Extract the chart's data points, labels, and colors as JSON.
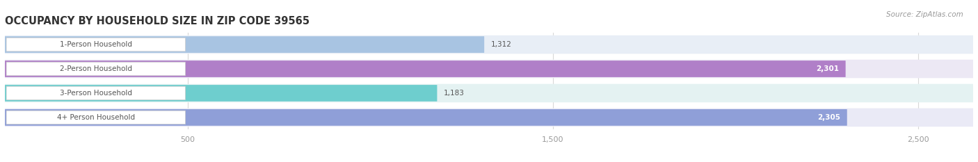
{
  "title": "OCCUPANCY BY HOUSEHOLD SIZE IN ZIP CODE 39565",
  "source": "Source: ZipAtlas.com",
  "categories": [
    "1-Person Household",
    "2-Person Household",
    "3-Person Household",
    "4+ Person Household"
  ],
  "values": [
    1312,
    2301,
    1183,
    2305
  ],
  "value_labels": [
    "1,312",
    "2,301",
    "1,183",
    "2,305"
  ],
  "bar_colors": [
    "#a8c4e2",
    "#b07fc8",
    "#6ecece",
    "#8f9fd8"
  ],
  "bar_bg_colors": [
    "#e8eef6",
    "#ece8f4",
    "#e4f2f2",
    "#eaeaf6"
  ],
  "label_pill_color": "#ffffff",
  "label_text_color": "#555555",
  "xlim_max": 2650,
  "data_max": 2500,
  "xticks": [
    500,
    1500,
    2500
  ],
  "title_fontsize": 10.5,
  "source_fontsize": 7.5,
  "label_fontsize": 7.5,
  "value_fontsize": 7.5,
  "tick_fontsize": 8,
  "fig_bg_color": "#ffffff",
  "row_bg_color_alt": "#f2f2f2",
  "grid_color": "#d8d8d8"
}
